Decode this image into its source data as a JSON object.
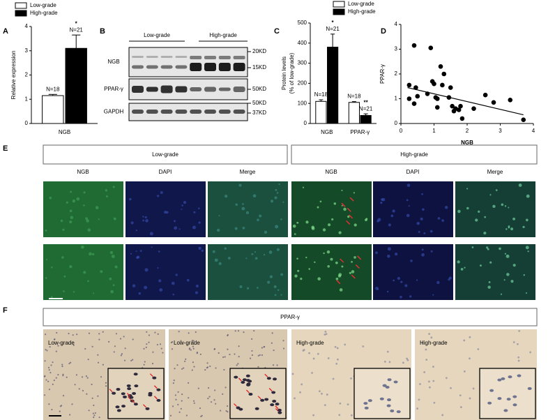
{
  "chart_data": [
    {
      "type": "bar",
      "panel_label": "A",
      "ylabel": "Relative expression",
      "categories": [
        "NGB"
      ],
      "series": [
        {
          "name": "Low-grade",
          "color": "#ffffff",
          "values": [
            1.15
          ],
          "errors": [
            0.05
          ],
          "n_labels": [
            "N=18"
          ],
          "sig": [
            null
          ]
        },
        {
          "name": "High-grade",
          "color": "#000000",
          "values": [
            3.1
          ],
          "errors": [
            0.55
          ],
          "n_labels": [
            "N=21"
          ],
          "sig": [
            "*"
          ]
        }
      ],
      "ylim": [
        0,
        4
      ],
      "yticks": [
        0,
        1,
        2,
        3,
        4
      ]
    },
    {
      "type": "bar",
      "panel_label": "C",
      "ylabel": [
        "Protein levels",
        "(% of low-grade)"
      ],
      "categories": [
        "NGB",
        "PPAR-γ"
      ],
      "series": [
        {
          "name": "Low-grade",
          "color": "#ffffff",
          "values": [
            110,
            105
          ],
          "errors": [
            8,
            4
          ],
          "n_labels": [
            "N=18",
            "N=18"
          ],
          "sig": [
            null,
            null
          ]
        },
        {
          "name": "High-grade",
          "color": "#000000",
          "values": [
            380,
            40
          ],
          "errors": [
            65,
            8
          ],
          "n_labels": [
            "N=21",
            "N=21"
          ],
          "sig": [
            "*",
            "**"
          ]
        }
      ],
      "ylim": [
        0,
        500
      ],
      "yticks": [
        0,
        100,
        200,
        300,
        400,
        500
      ]
    },
    {
      "type": "scatter",
      "panel_label": "D",
      "xlabel": "NGB",
      "ylabel": "PPAR-γ",
      "x": [
        0.25,
        0.25,
        0.4,
        0.4,
        0.45,
        0.5,
        0.9,
        0.8,
        0.95,
        1.0,
        1.05,
        1.1,
        1.1,
        1.2,
        1.25,
        1.3,
        1.45,
        1.5,
        1.55,
        1.6,
        1.65,
        1.75,
        1.8,
        1.85,
        2.2,
        2.55,
        2.8,
        3.3,
        3.7
      ],
      "y": [
        1.55,
        1.0,
        3.15,
        0.8,
        1.45,
        1.1,
        3.05,
        1.2,
        1.7,
        1.6,
        1.05,
        0.65,
        1.0,
        2.3,
        1.55,
        2.0,
        1.05,
        1.45,
        0.7,
        0.5,
        0.6,
        0.55,
        0.7,
        0.2,
        0.6,
        1.15,
        0.85,
        0.95,
        0.15
      ],
      "trendline": {
        "x": [
          0.2,
          3.7
        ],
        "y": [
          1.45,
          0.35
        ]
      },
      "color": "#000000",
      "xlim": [
        0,
        4
      ],
      "ylim": [
        0,
        4
      ],
      "xticks": [
        0,
        1,
        2,
        3,
        4
      ],
      "yticks": [
        0,
        1,
        2,
        3,
        4
      ]
    }
  ],
  "blot": {
    "panel_label": "B",
    "groups": [
      "Low-grade",
      "High-grade"
    ],
    "rows": [
      "NGB",
      "PPAR-γ",
      "GAPDH"
    ],
    "markers": [
      "20KD",
      "15KD",
      "50KD",
      "50KD",
      "37KD"
    ]
  },
  "panel_e": {
    "panel_label": "E",
    "groups": [
      "Low-grade",
      "High-grade"
    ],
    "columns": [
      "NGB",
      "DAPI",
      "Merge",
      "NGB",
      "DAPI",
      "Merge"
    ]
  },
  "panel_f": {
    "panel_label": "F",
    "header": "PPAR-γ",
    "images": [
      "Low-grade",
      "Low-grade",
      "High-grade",
      "High-grade"
    ]
  }
}
